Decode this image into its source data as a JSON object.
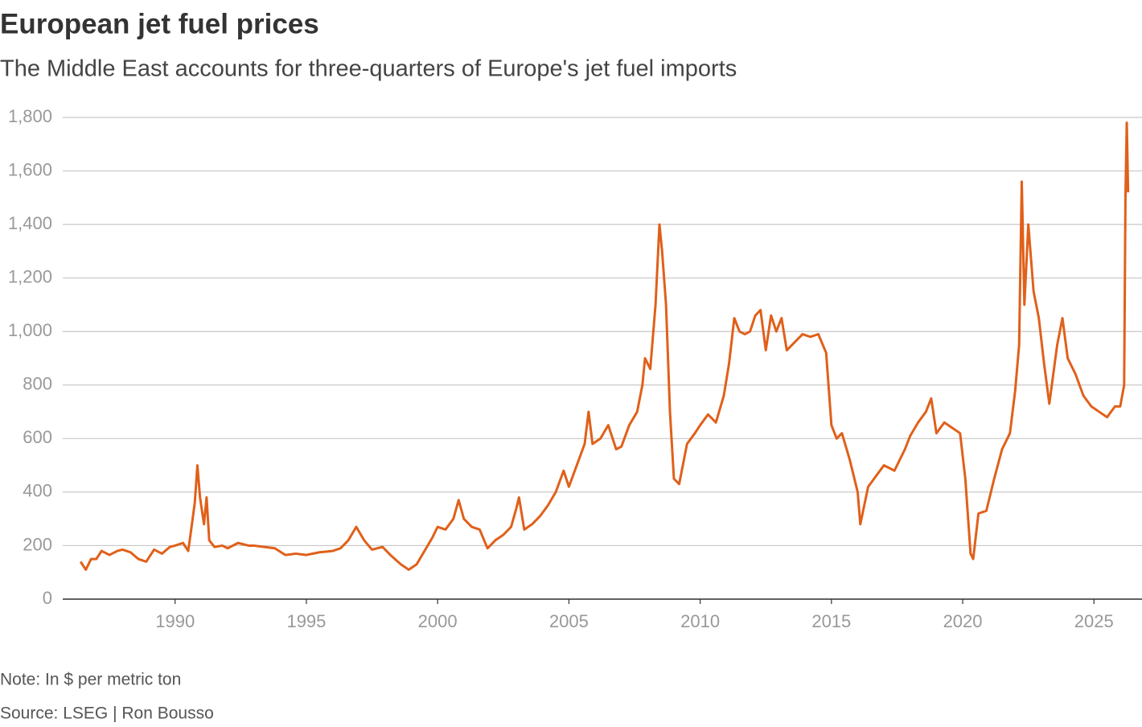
{
  "chart_data": {
    "type": "line",
    "title": "European jet fuel prices",
    "subtitle": "The Middle East accounts for three-quarters of Europe's jet fuel imports",
    "note": "Note: In $ per metric ton",
    "source": "Source: LSEG | Ron Bousso",
    "xlim": [
      1985.72,
      2026.83
    ],
    "xticks": [
      1990,
      1995,
      2000,
      2005,
      2010,
      2015,
      2020,
      2025
    ],
    "ylim": [
      0,
      1800
    ],
    "yticks": [
      0,
      200,
      400,
      600,
      800,
      {
        "value": 1000,
        "label": "1,000"
      },
      {
        "value": 1200,
        "label": "1,200"
      },
      {
        "value": 1400,
        "label": "1,400"
      },
      {
        "value": 1600,
        "label": "1,600"
      },
      {
        "value": 1800,
        "label": "1,800"
      }
    ],
    "grid": true,
    "x": [
      1986.4,
      1986.6,
      1986.8,
      1987.0,
      1987.2,
      1987.5,
      1987.8,
      1988.0,
      1988.3,
      1988.6,
      1988.9,
      1989.2,
      1989.5,
      1989.8,
      1990.0,
      1990.3,
      1990.5,
      1990.6,
      1990.75,
      1990.85,
      1990.95,
      1991.1,
      1991.2,
      1991.3,
      1991.5,
      1991.8,
      1992.0,
      1992.4,
      1992.8,
      1993.0,
      1993.4,
      1993.8,
      1994.2,
      1994.6,
      1995.0,
      1995.5,
      1996.0,
      1996.3,
      1996.6,
      1996.9,
      1997.2,
      1997.5,
      1997.9,
      1998.2,
      1998.6,
      1998.9,
      1999.2,
      1999.5,
      1999.8,
      2000.0,
      2000.3,
      2000.6,
      2000.8,
      2001.0,
      2001.3,
      2001.6,
      2001.9,
      2002.2,
      2002.5,
      2002.8,
      2003.0,
      2003.1,
      2003.3,
      2003.6,
      2003.9,
      2004.2,
      2004.5,
      2004.8,
      2005.0,
      2005.3,
      2005.6,
      2005.75,
      2005.9,
      2006.2,
      2006.5,
      2006.8,
      2007.0,
      2007.3,
      2007.6,
      2007.8,
      2007.9,
      2008.1,
      2008.3,
      2008.45,
      2008.55,
      2008.7,
      2008.85,
      2009.0,
      2009.2,
      2009.5,
      2009.8,
      2010.0,
      2010.3,
      2010.6,
      2010.9,
      2011.1,
      2011.3,
      2011.5,
      2011.7,
      2011.9,
      2012.1,
      2012.3,
      2012.5,
      2012.7,
      2012.9,
      2013.1,
      2013.3,
      2013.6,
      2013.9,
      2014.2,
      2014.5,
      2014.8,
      2015.0,
      2015.2,
      2015.4,
      2015.7,
      2016.0,
      2016.1,
      2016.4,
      2016.7,
      2017.0,
      2017.4,
      2017.8,
      2018.0,
      2018.3,
      2018.6,
      2018.8,
      2019.0,
      2019.3,
      2019.6,
      2019.9,
      2020.1,
      2020.3,
      2020.4,
      2020.6,
      2020.9,
      2021.2,
      2021.5,
      2021.8,
      2022.0,
      2022.15,
      2022.25,
      2022.35,
      2022.5,
      2022.7,
      2022.9,
      2023.1,
      2023.3,
      2023.6,
      2023.8,
      2024.0,
      2024.3,
      2024.6,
      2024.9,
      2025.2,
      2025.5,
      2025.8,
      2026.0,
      2026.15,
      2026.2,
      2026.25,
      2026.3
    ],
    "series": [
      {
        "color": "#e0601a",
        "values": [
          140,
          110,
          150,
          150,
          180,
          165,
          180,
          185,
          175,
          150,
          140,
          185,
          170,
          195,
          200,
          210,
          180,
          250,
          360,
          500,
          380,
          280,
          380,
          220,
          195,
          200,
          190,
          210,
          200,
          200,
          195,
          190,
          165,
          170,
          165,
          175,
          180,
          190,
          220,
          270,
          220,
          185,
          195,
          165,
          130,
          110,
          130,
          180,
          230,
          270,
          260,
          300,
          370,
          300,
          270,
          260,
          190,
          220,
          240,
          270,
          340,
          380,
          260,
          280,
          310,
          350,
          400,
          480,
          420,
          500,
          580,
          700,
          580,
          600,
          650,
          560,
          570,
          650,
          700,
          800,
          900,
          860,
          1100,
          1400,
          1300,
          1100,
          700,
          450,
          430,
          580,
          620,
          650,
          690,
          660,
          760,
          880,
          1050,
          1000,
          990,
          1000,
          1060,
          1080,
          930,
          1060,
          1000,
          1050,
          930,
          960,
          990,
          980,
          990,
          920,
          650,
          600,
          620,
          520,
          400,
          280,
          420,
          460,
          500,
          480,
          560,
          610,
          660,
          700,
          750,
          620,
          660,
          640,
          620,
          450,
          170,
          150,
          320,
          330,
          450,
          560,
          620,
          780,
          950,
          1560,
          1100,
          1400,
          1150,
          1050,
          880,
          730,
          950,
          1050,
          900,
          840,
          760,
          720,
          700,
          680,
          720,
          720,
          800,
          1500,
          1780,
          1520
        ]
      }
    ]
  }
}
